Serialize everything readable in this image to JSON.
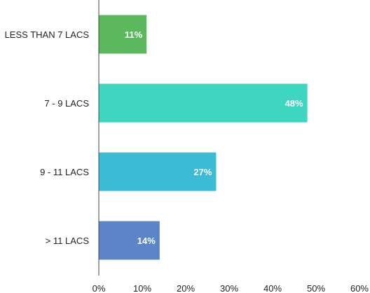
{
  "chart_data": {
    "type": "bar",
    "orientation": "horizontal",
    "categories": [
      "LESS THAN 7 LACS",
      "7 - 9 LACS",
      "9 - 11 LACS",
      "> 11 LACS"
    ],
    "values": [
      11,
      48,
      27,
      14
    ],
    "data_labels": [
      "11%",
      "48%",
      "27%",
      "14%"
    ],
    "colors": [
      "#5cb85c",
      "#3fd6c1",
      "#3bbcd4",
      "#5b84c9"
    ],
    "xlim": [
      0,
      60
    ],
    "x_ticks": [
      "0%",
      "10%",
      "20%",
      "30%",
      "40%",
      "50%",
      "60%"
    ],
    "title": "",
    "xlabel": "",
    "ylabel": "",
    "grid": false,
    "legend": "none"
  }
}
